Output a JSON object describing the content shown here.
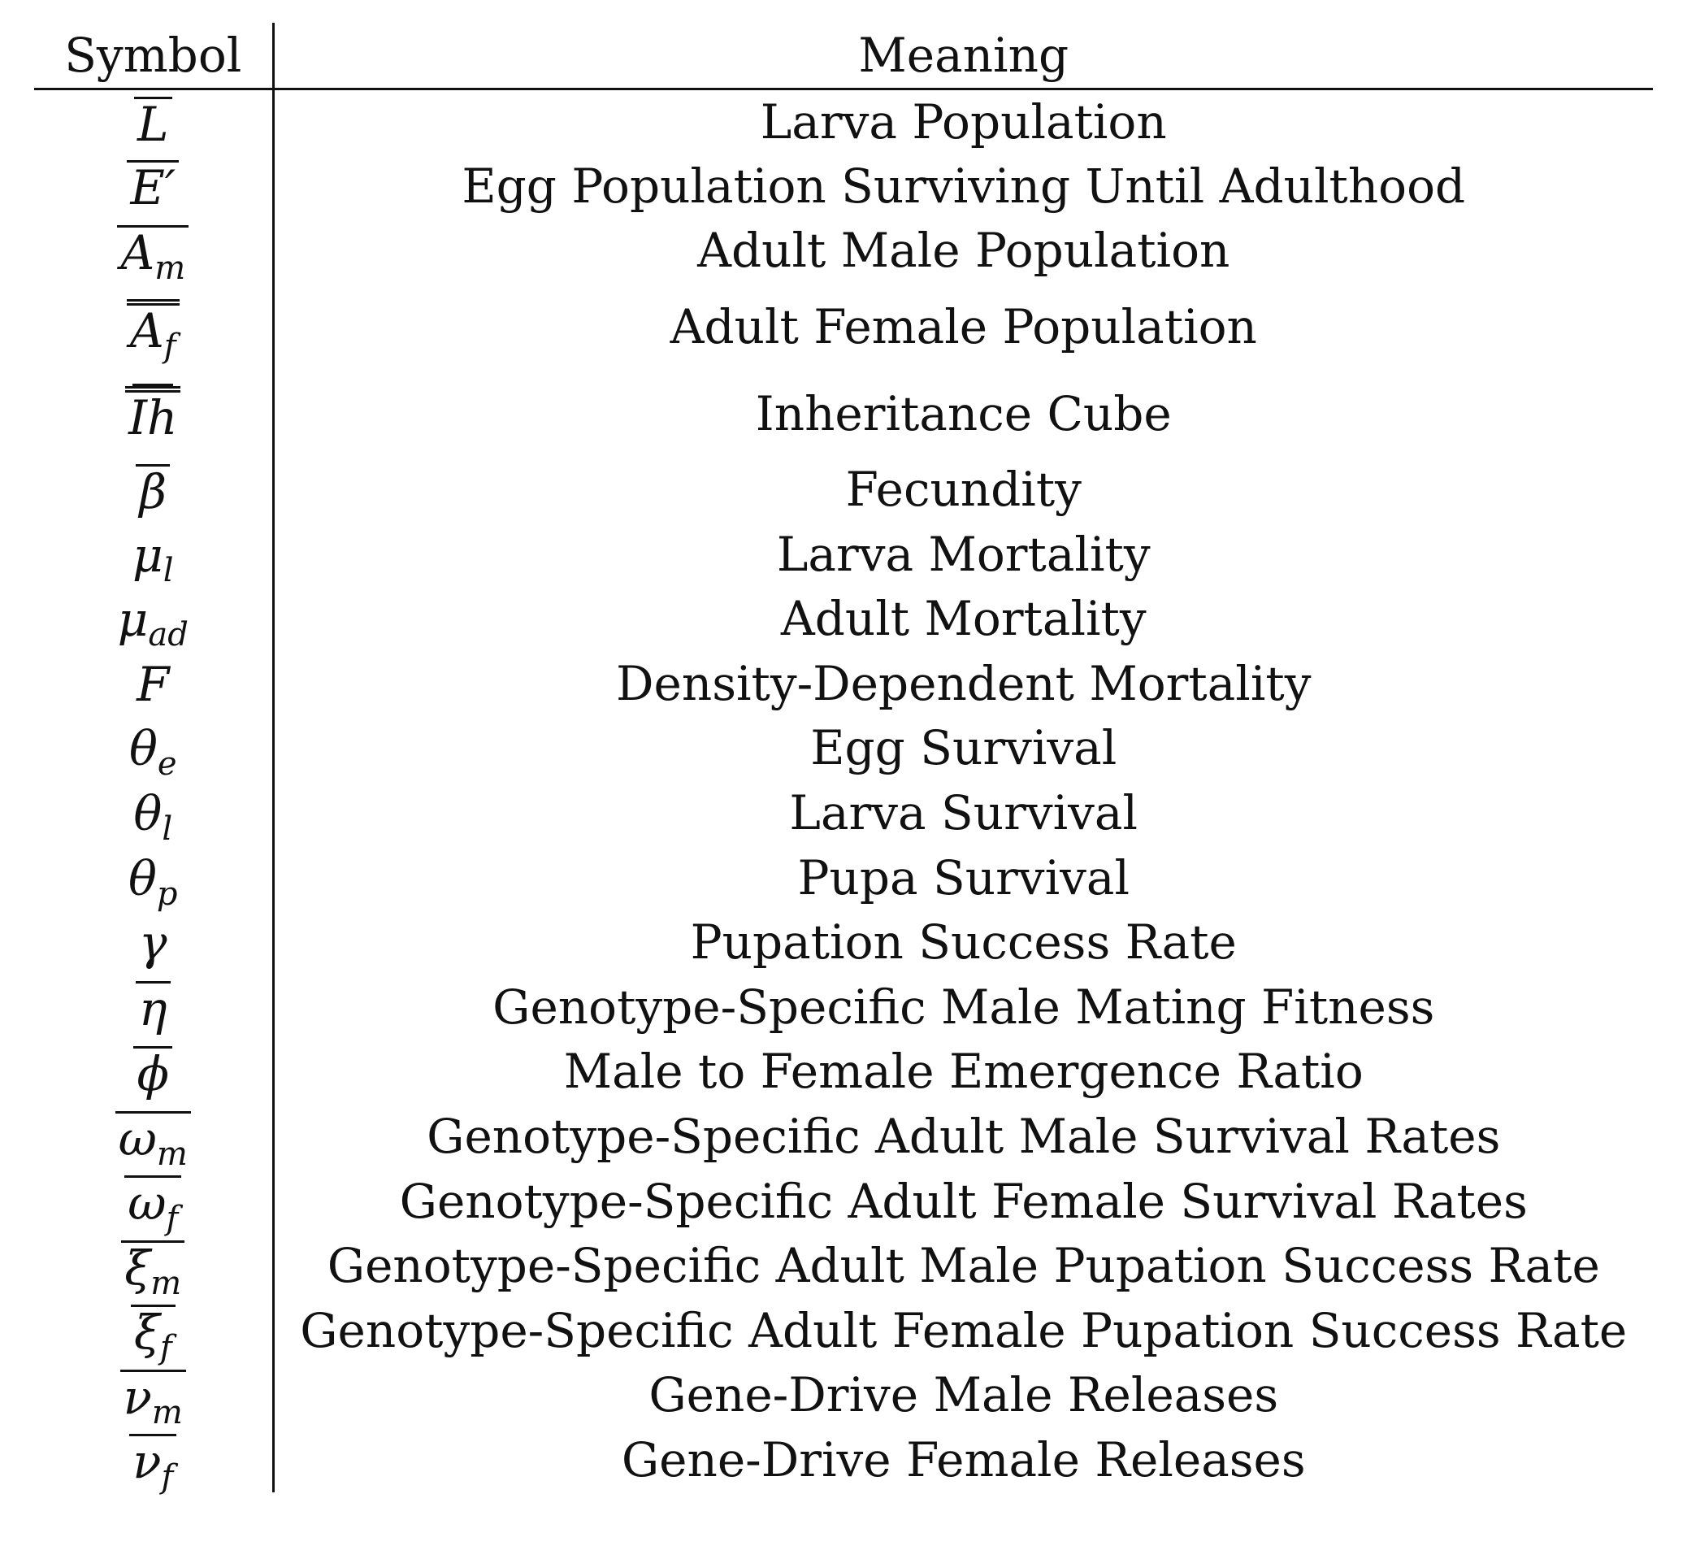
{
  "table": {
    "headers": {
      "symbol": "Symbol",
      "meaning": "Meaning"
    },
    "rows": [
      {
        "base": "L",
        "sub": "",
        "bar": "single",
        "meaning": "Larva Population"
      },
      {
        "base": "E′",
        "sub": "",
        "bar": "single",
        "meaning": "Egg Population Surviving Until Adulthood"
      },
      {
        "base": "A",
        "sub": "m",
        "bar": "single",
        "meaning": "Adult Male Population"
      },
      {
        "base": "A",
        "sub": "f",
        "bar": "double",
        "meaning": "Adult Female Population"
      },
      {
        "base": "Ih",
        "sub": "",
        "bar": "triple",
        "meaning": "Inheritance Cube"
      },
      {
        "base": "β",
        "sub": "",
        "bar": "single",
        "meaning": "Fecundity"
      },
      {
        "base": "μ",
        "sub": "l",
        "bar": "none",
        "meaning": "Larva Mortality"
      },
      {
        "base": "μ",
        "sub": "ad",
        "bar": "none",
        "meaning": "Adult Mortality"
      },
      {
        "base": "F",
        "sub": "",
        "bar": "none",
        "meaning": "Density-Dependent Mortality"
      },
      {
        "base": "θ",
        "sub": "e",
        "bar": "none",
        "meaning": "Egg Survival"
      },
      {
        "base": "θ",
        "sub": "l",
        "bar": "none",
        "meaning": "Larva Survival"
      },
      {
        "base": "θ",
        "sub": "p",
        "bar": "none",
        "meaning": "Pupa Survival"
      },
      {
        "base": "γ",
        "sub": "",
        "bar": "none",
        "meaning": "Pupation Success Rate"
      },
      {
        "base": "η",
        "sub": "",
        "bar": "single",
        "meaning": "Genotype-Specific Male Mating Fitness"
      },
      {
        "base": "ϕ",
        "sub": "",
        "bar": "single",
        "meaning": "Male to Female Emergence Ratio"
      },
      {
        "base": "ω",
        "sub": "m",
        "bar": "single",
        "meaning": "Genotype-Specific Adult Male Survival Rates"
      },
      {
        "base": "ω",
        "sub": "f",
        "bar": "single",
        "meaning": "Genotype-Specific Adult Female Survival Rates"
      },
      {
        "base": "ξ",
        "sub": "m",
        "bar": "single",
        "meaning": "Genotype-Specific Adult Male Pupation Success Rate"
      },
      {
        "base": "ξ",
        "sub": "f",
        "bar": "single",
        "meaning": "Genotype-Specific Adult Female Pupation Success Rate"
      },
      {
        "base": "ν",
        "sub": "m",
        "bar": "single",
        "meaning": "Gene-Drive Male Releases"
      },
      {
        "base": "ν",
        "sub": "f",
        "bar": "single",
        "meaning": "Gene-Drive Female Releases"
      }
    ]
  }
}
